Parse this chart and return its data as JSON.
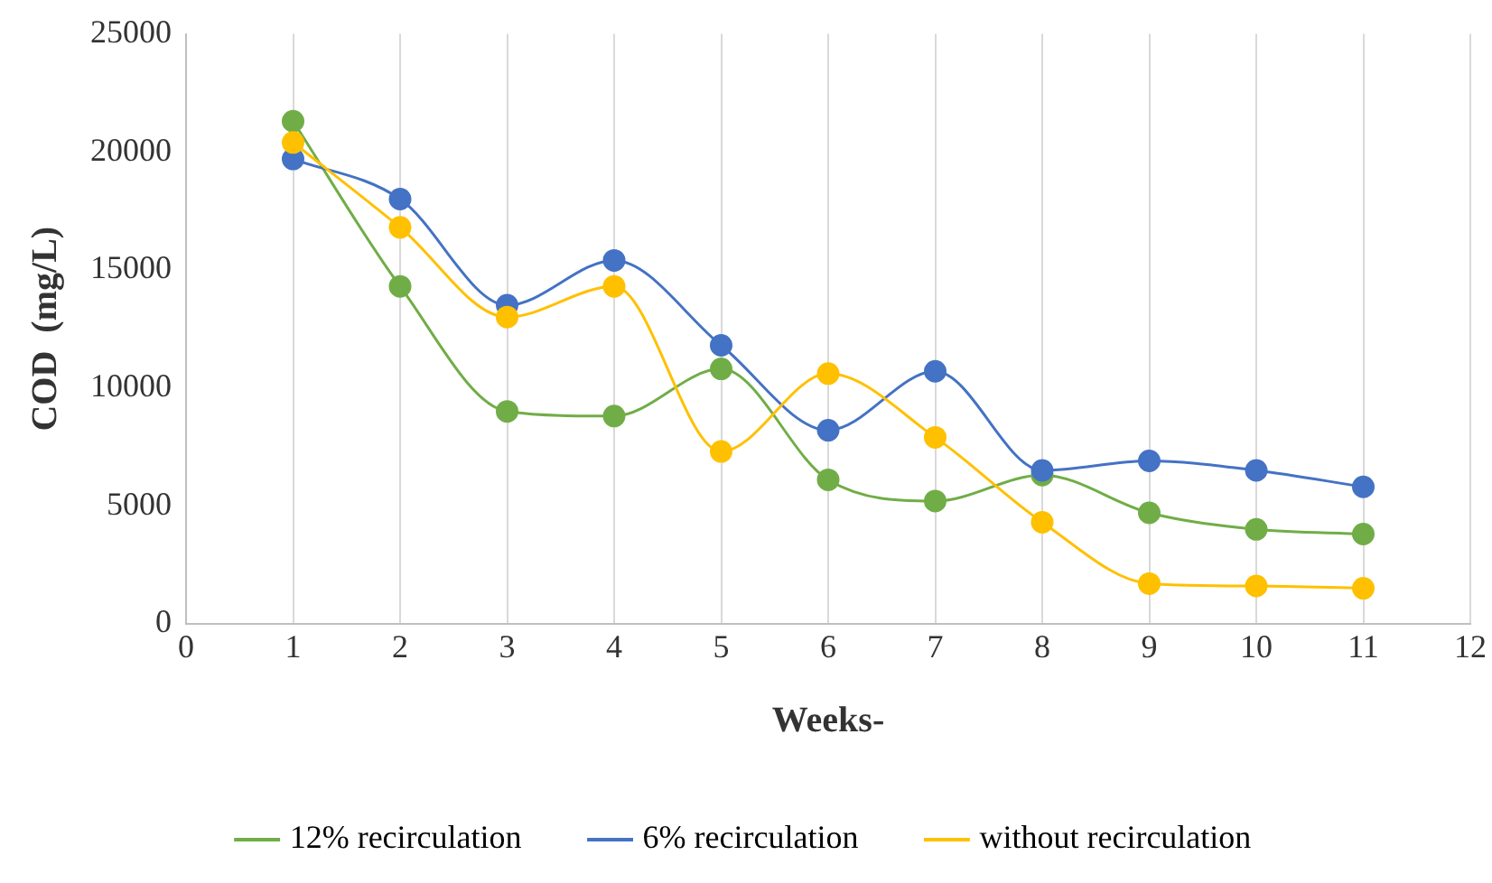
{
  "chart_data": {
    "type": "line",
    "xlabel": "Weeks-",
    "ylabel": "COD  (mg/L)",
    "x": [
      1,
      2,
      3,
      4,
      5,
      6,
      7,
      8,
      9,
      10,
      11
    ],
    "series": [
      {
        "name": "12% recirculation",
        "color": "#70ad47",
        "values": [
          21300,
          14300,
          9000,
          8800,
          10800,
          6100,
          5200,
          6300,
          4700,
          4000,
          3800
        ]
      },
      {
        "name": "6% recirculation",
        "color": "#4472c4",
        "values": [
          19700,
          18000,
          13500,
          15400,
          11800,
          8200,
          10700,
          6500,
          6900,
          6500,
          5800
        ]
      },
      {
        "name": "without recirculation",
        "color": "#ffc000",
        "values": [
          20400,
          16800,
          13000,
          14300,
          7300,
          10600,
          7900,
          4300,
          1700,
          1600,
          1500
        ]
      }
    ],
    "xlim": [
      0,
      12
    ],
    "xticks": [
      0,
      1,
      2,
      3,
      4,
      5,
      6,
      7,
      8,
      9,
      10,
      11,
      12
    ],
    "ylim": [
      0,
      25000
    ],
    "yticks": [
      0,
      5000,
      10000,
      15000,
      20000,
      25000
    ],
    "grid": "x",
    "legend": "bottom",
    "marker": "circle",
    "line_style": "solid"
  }
}
